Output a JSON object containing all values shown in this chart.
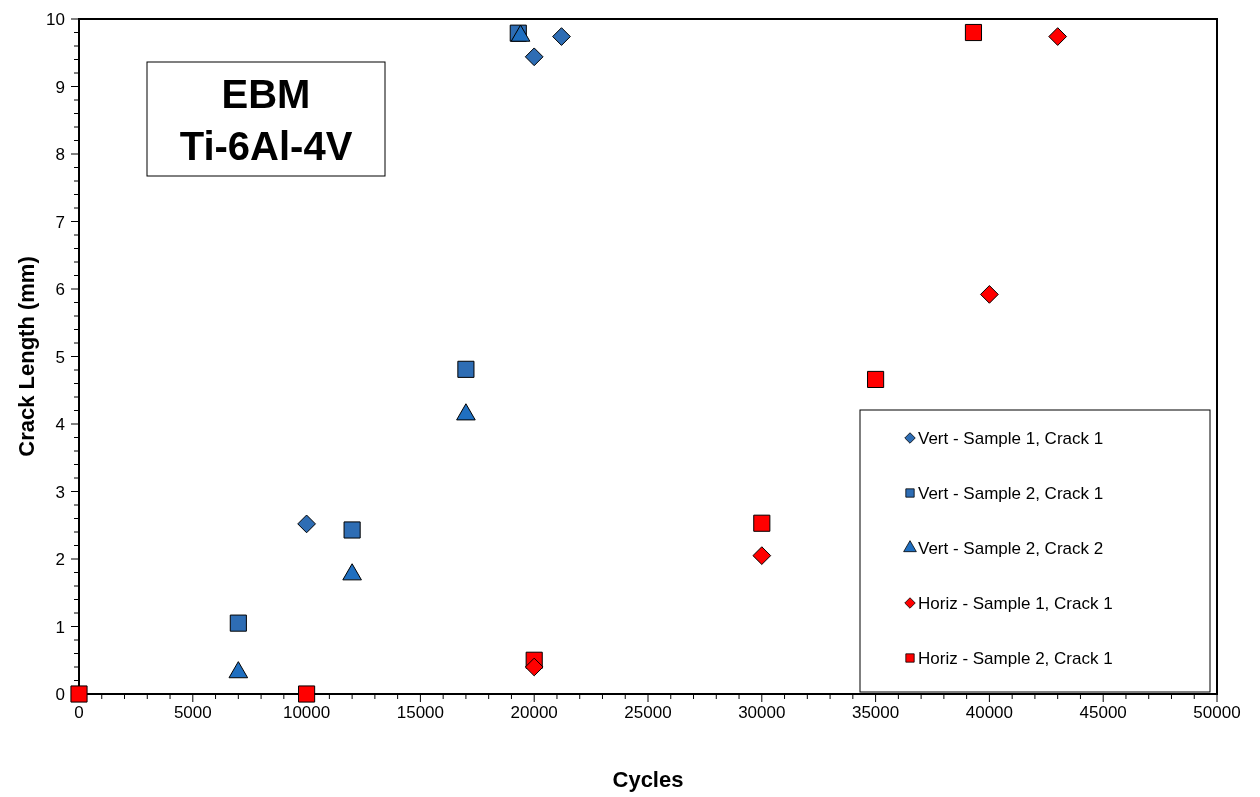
{
  "chart_data": {
    "type": "scatter",
    "xlabel": "Cycles",
    "ylabel": "Crack Length (mm)",
    "annotations": [
      "EBM\nTi-6Al-4V"
    ],
    "xlim": [
      0,
      50000
    ],
    "ylim": [
      0,
      10
    ],
    "xticks": [
      0,
      {
        "value": 1000,
        "label": null
      },
      {
        "value": 2000,
        "label": null
      },
      {
        "value": 3000,
        "label": null
      },
      {
        "value": 4000,
        "label": null
      },
      5000,
      {
        "value": 6000,
        "label": null
      },
      {
        "value": 7000,
        "label": null
      },
      {
        "value": 8000,
        "label": null
      },
      {
        "value": 9000,
        "label": null
      },
      10000,
      {
        "value": 11000,
        "label": null
      },
      {
        "value": 12000,
        "label": null
      },
      {
        "value": 13000,
        "label": null
      },
      {
        "value": 14000,
        "label": null
      },
      15000,
      {
        "value": 16000,
        "label": null
      },
      {
        "value": 17000,
        "label": null
      },
      {
        "value": 18000,
        "label": null
      },
      {
        "value": 19000,
        "label": null
      },
      20000,
      {
        "value": 21000,
        "label": null
      },
      {
        "value": 22000,
        "label": null
      },
      {
        "value": 23000,
        "label": null
      },
      {
        "value": 24000,
        "label": null
      },
      25000,
      {
        "value": 26000,
        "label": null
      },
      {
        "value": 27000,
        "label": null
      },
      {
        "value": 28000,
        "label": null
      },
      {
        "value": 29000,
        "label": null
      },
      30000,
      {
        "value": 31000,
        "label": null
      },
      {
        "value": 32000,
        "label": null
      },
      {
        "value": 33000,
        "label": null
      },
      {
        "value": 34000,
        "label": null
      },
      35000,
      {
        "value": 36000,
        "label": null
      },
      {
        "value": 37000,
        "label": null
      },
      {
        "value": 38000,
        "label": null
      },
      {
        "value": 39000,
        "label": null
      },
      40000,
      {
        "value": 41000,
        "label": null
      },
      {
        "value": 42000,
        "label": null
      },
      {
        "value": 43000,
        "label": null
      },
      {
        "value": 44000,
        "label": null
      },
      45000,
      {
        "value": 46000,
        "label": null
      },
      {
        "value": 47000,
        "label": null
      },
      {
        "value": 48000,
        "label": null
      },
      {
        "value": 49000,
        "label": null
      },
      50000
    ],
    "yticks": [
      0,
      {
        "value": 0.2,
        "label": null
      },
      {
        "value": 0.4,
        "label": null
      },
      {
        "value": 0.6,
        "label": null
      },
      {
        "value": 0.8,
        "label": null
      },
      1,
      {
        "value": 1.2,
        "label": null
      },
      {
        "value": 1.4,
        "label": null
      },
      {
        "value": 1.6,
        "label": null
      },
      {
        "value": 1.8,
        "label": null
      },
      2,
      {
        "value": 2.2,
        "label": null
      },
      {
        "value": 2.4,
        "label": null
      },
      {
        "value": 2.6,
        "label": null
      },
      {
        "value": 2.8,
        "label": null
      },
      3,
      {
        "value": 3.2,
        "label": null
      },
      {
        "value": 3.4,
        "label": null
      },
      {
        "value": 3.6,
        "label": null
      },
      {
        "value": 3.8,
        "label": null
      },
      4,
      {
        "value": 4.2,
        "label": null
      },
      {
        "value": 4.4,
        "label": null
      },
      {
        "value": 4.6,
        "label": null
      },
      {
        "value": 4.8,
        "label": null
      },
      5,
      {
        "value": 5.2,
        "label": null
      },
      {
        "value": 5.4,
        "label": null
      },
      {
        "value": 5.6,
        "label": null
      },
      {
        "value": 5.8,
        "label": null
      },
      6,
      {
        "value": 6.2,
        "label": null
      },
      {
        "value": 6.4,
        "label": null
      },
      {
        "value": 6.6,
        "label": null
      },
      {
        "value": 6.8,
        "label": null
      },
      7,
      {
        "value": 7.2,
        "label": null
      },
      {
        "value": 7.4,
        "label": null
      },
      {
        "value": 7.6,
        "label": null
      },
      {
        "value": 7.8,
        "label": null
      },
      8,
      {
        "value": 8.2,
        "label": null
      },
      {
        "value": 8.4,
        "label": null
      },
      {
        "value": 8.6,
        "label": null
      },
      {
        "value": 8.8,
        "label": null
      },
      9,
      {
        "value": 9.2,
        "label": null
      },
      {
        "value": 9.4,
        "label": null
      },
      {
        "value": 9.6,
        "label": null
      },
      {
        "value": 9.8,
        "label": null
      },
      10
    ],
    "grid": false,
    "legend": "bottom right",
    "series": [
      {
        "name": "Vert - Sample 1, Crack 1",
        "color": "#2e6db4",
        "marker": "diamond",
        "x": [
          10000,
          20000,
          21200
        ],
        "values": [
          2.52,
          9.44,
          9.74
        ]
      },
      {
        "name": "Vert - Sample 2, Crack 1",
        "color": "#2e6db4",
        "marker": "square",
        "x": [
          7000,
          12000,
          17000,
          19300
        ],
        "values": [
          1.05,
          2.43,
          4.81,
          9.79
        ]
      },
      {
        "name": "Vert - Sample 2, Crack 2",
        "color": "#1f6fc0",
        "marker": "triangle",
        "x": [
          7000,
          12000,
          17000,
          19400
        ],
        "values": [
          0.35,
          1.8,
          4.17,
          9.78
        ]
      },
      {
        "name": "Horiz - Sample 1, Crack 1",
        "color": "#ff0000",
        "marker": "diamond",
        "x": [
          20000,
          30000,
          40000,
          43000
        ],
        "values": [
          0.4,
          2.05,
          5.92,
          9.74
        ]
      },
      {
        "name": "Horiz - Sample 2, Crack 1",
        "color": "#ff0000",
        "marker": "square",
        "x": [
          0,
          10000,
          20000,
          30000,
          35000,
          39300
        ],
        "values": [
          0,
          0,
          0.5,
          2.53,
          4.66,
          9.8
        ]
      }
    ]
  }
}
